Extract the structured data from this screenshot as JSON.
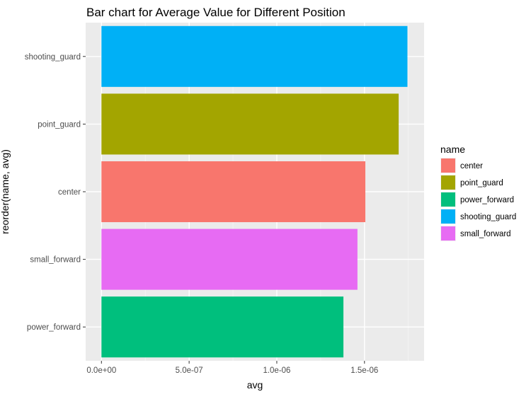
{
  "chart_data": {
    "type": "bar",
    "orientation": "horizontal",
    "title": "Bar chart for Average Value for Different Position",
    "xlabel": "avg",
    "ylabel": "reorder(name, avg)",
    "categories": [
      "power_forward",
      "small_forward",
      "center",
      "point_guard",
      "shooting_guard"
    ],
    "values": [
      1.38e-06,
      1.46e-06,
      1.505e-06,
      1.695e-06,
      1.745e-06
    ],
    "x_ticks": [
      {
        "value": 0,
        "label": "0.0e+00"
      },
      {
        "value": 5e-07,
        "label": "5.0e-07"
      },
      {
        "value": 1e-06,
        "label": "1.0e-06"
      },
      {
        "value": 1.5e-06,
        "label": "1.5e-06"
      }
    ],
    "xlim": [
      -9e-08,
      1.84e-06
    ],
    "grid": true,
    "legend": {
      "title": "name",
      "position": "right",
      "items": [
        "center",
        "point_guard",
        "power_forward",
        "shooting_guard",
        "small_forward"
      ]
    },
    "colors": {
      "center": "#F8766D",
      "point_guard": "#A3A500",
      "power_forward": "#00BF7D",
      "shooting_guard": "#00B0F6",
      "small_forward": "#E76BF3"
    },
    "panel_background": "#EBEBEB"
  }
}
